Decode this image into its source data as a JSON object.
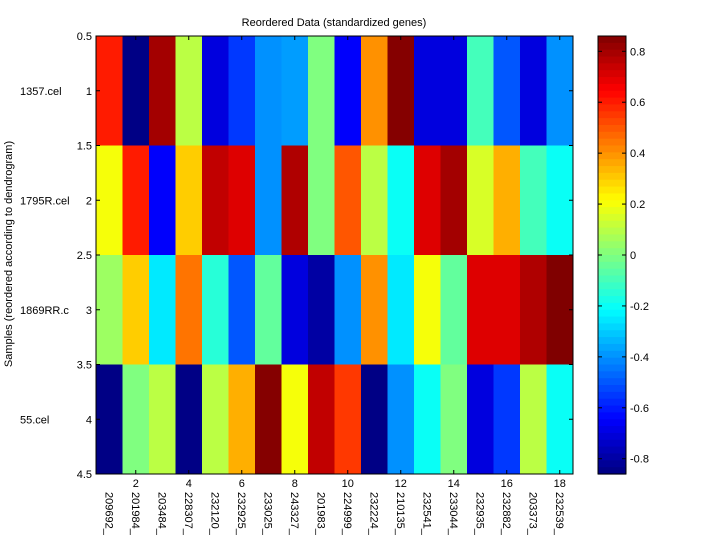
{
  "chart_data": {
    "type": "heatmap",
    "title": "Reordered Data (standardized genes)",
    "ylabel": "Samples (reordered according to dendrogram)",
    "xlabel": "",
    "row_labels": [
      "1357.cel",
      "1795R.cel",
      "1869RR.c",
      "55.cel"
    ],
    "col_labels": [
      "209692_",
      "201984_",
      "203484_",
      "228307_",
      "232120_",
      "232925_",
      "233025_",
      "243327_",
      "201983_",
      "224999_",
      "232224_",
      "210135_",
      "232541_",
      "233044_",
      "232935_",
      "232882_",
      "203373_",
      "232539_"
    ],
    "x_ticks": [
      2,
      4,
      6,
      8,
      10,
      12,
      14,
      16,
      18
    ],
    "y_ticks": [
      0.5,
      1,
      1.5,
      2,
      2.5,
      3,
      3.5,
      4,
      4.5
    ],
    "colorbar_ticks": [
      -0.8,
      -0.6,
      -0.4,
      -0.2,
      0,
      0.2,
      0.4,
      0.6,
      0.8
    ],
    "clim": [
      -0.86,
      0.86
    ],
    "colormap": "jet",
    "values": [
      [
        0.6,
        -0.85,
        0.8,
        0.1,
        -0.7,
        -0.55,
        -0.4,
        -0.38,
        0.0,
        -0.65,
        0.4,
        0.85,
        -0.7,
        -0.7,
        -0.1,
        -0.5,
        -0.7,
        -0.4
      ],
      [
        0.2,
        0.6,
        -0.65,
        0.3,
        0.75,
        0.7,
        -0.4,
        0.78,
        0.0,
        0.5,
        0.1,
        -0.2,
        0.7,
        0.8,
        0.15,
        0.35,
        -0.1,
        -0.2
      ],
      [
        0.05,
        0.3,
        -0.25,
        0.45,
        -0.15,
        -0.5,
        -0.05,
        -0.7,
        -0.8,
        -0.4,
        0.4,
        -0.25,
        0.2,
        -0.05,
        0.7,
        0.7,
        0.78,
        0.86
      ],
      [
        -0.85,
        0.0,
        0.1,
        -0.85,
        0.1,
        0.35,
        0.85,
        0.2,
        0.75,
        0.55,
        -0.85,
        -0.4,
        -0.2,
        0.0,
        -0.7,
        -0.55,
        0.1,
        -0.2
      ]
    ]
  }
}
